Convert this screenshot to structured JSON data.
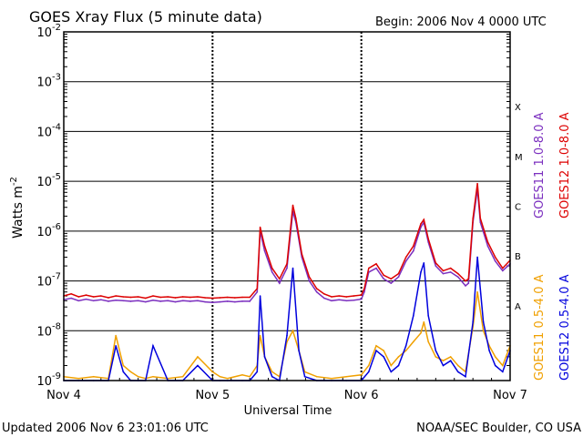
{
  "chart_data": {
    "type": "line",
    "title": "GOES Xray Flux (5 minute data)",
    "begin_label": "Begin:  2006 Nov 4 0000 UTC",
    "xlabel": "Universal Time",
    "ylabel": "Watts m",
    "ylabel_sup": "-2",
    "y_scale": "log",
    "ylim": [
      1e-09,
      0.01
    ],
    "y_ticks": [
      {
        "base": "10",
        "exp": "-2"
      },
      {
        "base": "10",
        "exp": "-3"
      },
      {
        "base": "10",
        "exp": "-4"
      },
      {
        "base": "10",
        "exp": "-5"
      },
      {
        "base": "10",
        "exp": "-6"
      },
      {
        "base": "10",
        "exp": "-7"
      },
      {
        "base": "10",
        "exp": "-8"
      },
      {
        "base": "10",
        "exp": "-9"
      }
    ],
    "x_ticks": [
      "Nov 4",
      "Nov 5",
      "Nov 6",
      "Nov 7"
    ],
    "xlim_days": [
      0,
      3
    ],
    "flare_classes": [
      "X",
      "M",
      "C",
      "B",
      "A"
    ],
    "legend": [
      {
        "label": "GOES11 1.0-8.0 A",
        "color": "#7b2fbf"
      },
      {
        "label": "GOES12 1.0-8.0 A",
        "color": "#dd0000"
      },
      {
        "label": "GOES11 0.5-4.0 A",
        "color": "#f0a000"
      },
      {
        "label": "GOES12 0.5-4.0 A",
        "color": "#0000dd"
      }
    ],
    "series": [
      {
        "name": "GOES11 1.0-8.0 A",
        "color": "#7b2fbf",
        "x": [
          0.0,
          0.05,
          0.1,
          0.15,
          0.2,
          0.25,
          0.3,
          0.35,
          0.4,
          0.45,
          0.5,
          0.55,
          0.6,
          0.65,
          0.7,
          0.75,
          0.8,
          0.85,
          0.9,
          0.95,
          1.0,
          1.05,
          1.1,
          1.15,
          1.2,
          1.25,
          1.3,
          1.32,
          1.35,
          1.4,
          1.45,
          1.5,
          1.54,
          1.56,
          1.6,
          1.65,
          1.7,
          1.75,
          1.8,
          1.85,
          1.9,
          1.95,
          2.0,
          2.02,
          2.05,
          2.1,
          2.15,
          2.2,
          2.25,
          2.3,
          2.35,
          2.4,
          2.42,
          2.45,
          2.5,
          2.55,
          2.6,
          2.65,
          2.7,
          2.72,
          2.75,
          2.78,
          2.8,
          2.85,
          2.9,
          2.95,
          3.0
        ],
        "y": [
          4.2e-08,
          4.5e-08,
          4e-08,
          4.3e-08,
          4e-08,
          4.2e-08,
          3.9e-08,
          4.1e-08,
          4e-08,
          3.9e-08,
          4e-08,
          3.8e-08,
          4.1e-08,
          3.9e-08,
          4e-08,
          3.8e-08,
          4e-08,
          3.9e-08,
          4e-08,
          3.8e-08,
          3.7e-08,
          3.8e-08,
          3.9e-08,
          3.8e-08,
          3.9e-08,
          3.9e-08,
          6e-08,
          1e-06,
          4e-07,
          1.5e-07,
          9e-08,
          1.8e-07,
          2.5e-06,
          1.5e-06,
          3e-07,
          1e-07,
          6e-08,
          4.5e-08,
          4e-08,
          4.2e-08,
          4e-08,
          4.1e-08,
          4.3e-08,
          6e-08,
          1.5e-07,
          1.8e-07,
          1.1e-07,
          9e-08,
          1.2e-07,
          2.5e-07,
          4e-07,
          1.2e-06,
          1.5e-06,
          6e-07,
          2e-07,
          1.4e-07,
          1.5e-07,
          1.2e-07,
          8e-08,
          9e-08,
          1.5e-06,
          7e-06,
          1.5e-06,
          5e-07,
          2.5e-07,
          1.6e-07,
          2.2e-07
        ]
      },
      {
        "name": "GOES12 1.0-8.0 A",
        "color": "#dd0000",
        "x": [
          0.0,
          0.05,
          0.1,
          0.15,
          0.2,
          0.25,
          0.3,
          0.35,
          0.4,
          0.45,
          0.5,
          0.55,
          0.6,
          0.65,
          0.7,
          0.75,
          0.8,
          0.85,
          0.9,
          0.95,
          1.0,
          1.05,
          1.1,
          1.15,
          1.2,
          1.25,
          1.3,
          1.32,
          1.35,
          1.4,
          1.45,
          1.5,
          1.54,
          1.56,
          1.6,
          1.65,
          1.7,
          1.75,
          1.8,
          1.85,
          1.9,
          1.95,
          2.0,
          2.02,
          2.05,
          2.1,
          2.15,
          2.2,
          2.25,
          2.3,
          2.35,
          2.4,
          2.42,
          2.45,
          2.5,
          2.55,
          2.6,
          2.65,
          2.7,
          2.72,
          2.75,
          2.78,
          2.8,
          2.85,
          2.9,
          2.95,
          3.0
        ],
        "y": [
          5e-08,
          5.5e-08,
          4.8e-08,
          5.2e-08,
          4.8e-08,
          5e-08,
          4.6e-08,
          5e-08,
          4.8e-08,
          4.7e-08,
          4.8e-08,
          4.5e-08,
          5e-08,
          4.7e-08,
          4.8e-08,
          4.6e-08,
          4.8e-08,
          4.7e-08,
          4.8e-08,
          4.6e-08,
          4.5e-08,
          4.6e-08,
          4.7e-08,
          4.6e-08,
          4.7e-08,
          4.7e-08,
          7e-08,
          1.2e-06,
          5e-07,
          1.8e-07,
          1.1e-07,
          2.2e-07,
          3.3e-06,
          1.8e-06,
          3.5e-07,
          1.2e-07,
          7e-08,
          5.5e-08,
          4.8e-08,
          5e-08,
          4.8e-08,
          5e-08,
          5.2e-08,
          7e-08,
          1.8e-07,
          2.2e-07,
          1.3e-07,
          1.1e-07,
          1.4e-07,
          3e-07,
          5e-07,
          1.4e-06,
          1.7e-06,
          7e-07,
          2.3e-07,
          1.6e-07,
          1.8e-07,
          1.4e-07,
          1e-07,
          1.1e-07,
          1.8e-06,
          9e-06,
          1.8e-06,
          6e-07,
          3e-07,
          1.8e-07,
          2.6e-07
        ]
      },
      {
        "name": "GOES11 0.5-4.0 A",
        "color": "#f0a000",
        "x": [
          0.0,
          0.1,
          0.2,
          0.3,
          0.35,
          0.4,
          0.45,
          0.5,
          0.55,
          0.6,
          0.7,
          0.8,
          0.9,
          1.0,
          1.05,
          1.1,
          1.2,
          1.25,
          1.3,
          1.32,
          1.35,
          1.4,
          1.45,
          1.5,
          1.54,
          1.58,
          1.62,
          1.7,
          1.8,
          1.9,
          2.0,
          2.05,
          2.1,
          2.15,
          2.2,
          2.25,
          2.3,
          2.35,
          2.4,
          2.42,
          2.45,
          2.5,
          2.55,
          2.6,
          2.65,
          2.7,
          2.75,
          2.78,
          2.82,
          2.86,
          2.9,
          2.95,
          3.0
        ],
        "y": [
          1.2e-09,
          1.1e-09,
          1.2e-09,
          1.1e-09,
          8e-09,
          2e-09,
          1.5e-09,
          1.2e-09,
          1.1e-09,
          1.2e-09,
          1.1e-09,
          1.2e-09,
          3e-09,
          1.5e-09,
          1.2e-09,
          1.1e-09,
          1.3e-09,
          1.2e-09,
          2e-09,
          8e-09,
          3e-09,
          1.5e-09,
          1.2e-09,
          6e-09,
          1e-08,
          4e-09,
          1.5e-09,
          1.2e-09,
          1.1e-09,
          1.2e-09,
          1.3e-09,
          2e-09,
          5e-09,
          4e-09,
          2e-09,
          3e-09,
          4e-09,
          6e-09,
          9e-09,
          1.5e-08,
          6e-09,
          3e-09,
          2.5e-09,
          3e-09,
          2e-09,
          1.5e-09,
          1.2e-08,
          6e-08,
          1e-08,
          5e-09,
          3e-09,
          2e-09,
          5e-09
        ]
      },
      {
        "name": "GOES12 0.5-4.0 A",
        "color": "#0000dd",
        "x": [
          0.0,
          0.1,
          0.2,
          0.3,
          0.35,
          0.4,
          0.45,
          0.5,
          0.55,
          0.6,
          0.7,
          0.8,
          0.9,
          1.0,
          1.05,
          1.1,
          1.2,
          1.25,
          1.3,
          1.32,
          1.35,
          1.4,
          1.45,
          1.5,
          1.54,
          1.58,
          1.62,
          1.7,
          1.8,
          1.9,
          2.0,
          2.05,
          2.1,
          2.15,
          2.2,
          2.25,
          2.3,
          2.35,
          2.4,
          2.42,
          2.45,
          2.5,
          2.55,
          2.6,
          2.65,
          2.7,
          2.75,
          2.78,
          2.82,
          2.86,
          2.9,
          2.95,
          3.0
        ],
        "y": [
          1e-09,
          1e-09,
          1e-09,
          1e-09,
          5e-09,
          1.5e-09,
          1e-09,
          1e-09,
          1e-09,
          5e-09,
          1e-09,
          1e-09,
          2e-09,
          1e-09,
          1e-09,
          1e-09,
          1e-09,
          1e-09,
          1.5e-09,
          5e-08,
          3e-09,
          1.2e-09,
          1e-09,
          8e-09,
          1.8e-07,
          4e-09,
          1.2e-09,
          1e-09,
          1e-09,
          1e-09,
          1e-09,
          1.5e-09,
          4e-09,
          3e-09,
          1.5e-09,
          2e-09,
          5e-09,
          2e-08,
          1.5e-07,
          2.3e-07,
          2e-08,
          4e-09,
          2e-09,
          2.5e-09,
          1.5e-09,
          1.2e-09,
          1.5e-08,
          3e-07,
          1.5e-08,
          4e-09,
          2e-09,
          1.5e-09,
          4e-09
        ]
      }
    ]
  },
  "footer": {
    "updated": "Updated 2006 Nov  6 23:01:06 UTC",
    "source": "NOAA/SEC Boulder, CO USA"
  }
}
